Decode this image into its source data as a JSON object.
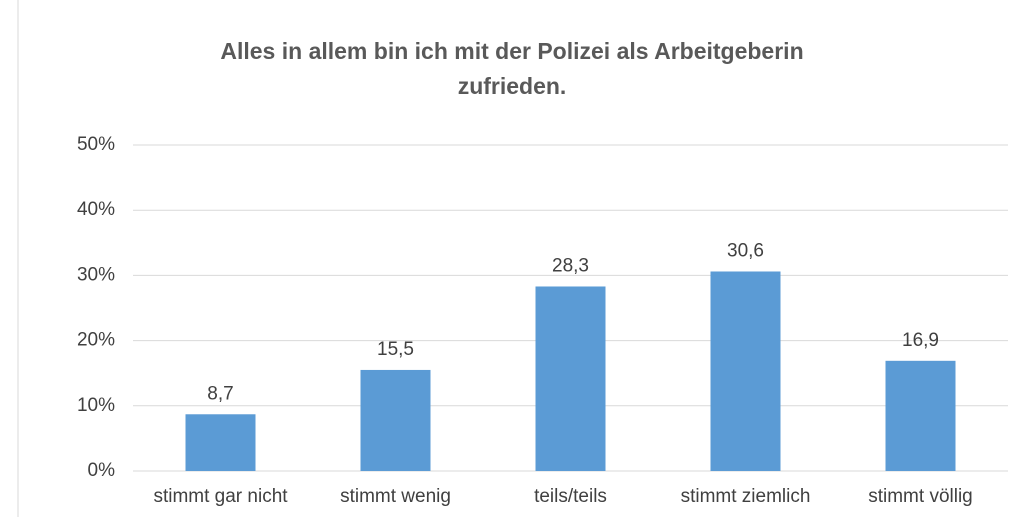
{
  "chart_data": {
    "type": "bar",
    "title": "Alles in allem bin ich mit der Polizei als Arbeitgeberin zufrieden.",
    "categories": [
      "stimmt gar nicht",
      "stimmt wenig",
      "teils/teils",
      "stimmt ziemlich",
      "stimmt völlig"
    ],
    "values": [
      8.7,
      15.5,
      28.3,
      30.6,
      16.9
    ],
    "value_labels": [
      "8,7",
      "15,5",
      "28,3",
      "30,6",
      "16,9"
    ],
    "color": "#5b9bd5",
    "ylim": [
      0,
      50
    ],
    "yticks": [
      {
        "value": 0,
        "label": "0%"
      },
      {
        "value": 10,
        "label": "10%"
      },
      {
        "value": 20,
        "label": "20%"
      },
      {
        "value": 30,
        "label": "30%"
      },
      {
        "value": 40,
        "label": "40%"
      },
      {
        "value": 50,
        "label": "50%"
      }
    ],
    "grid": true
  }
}
